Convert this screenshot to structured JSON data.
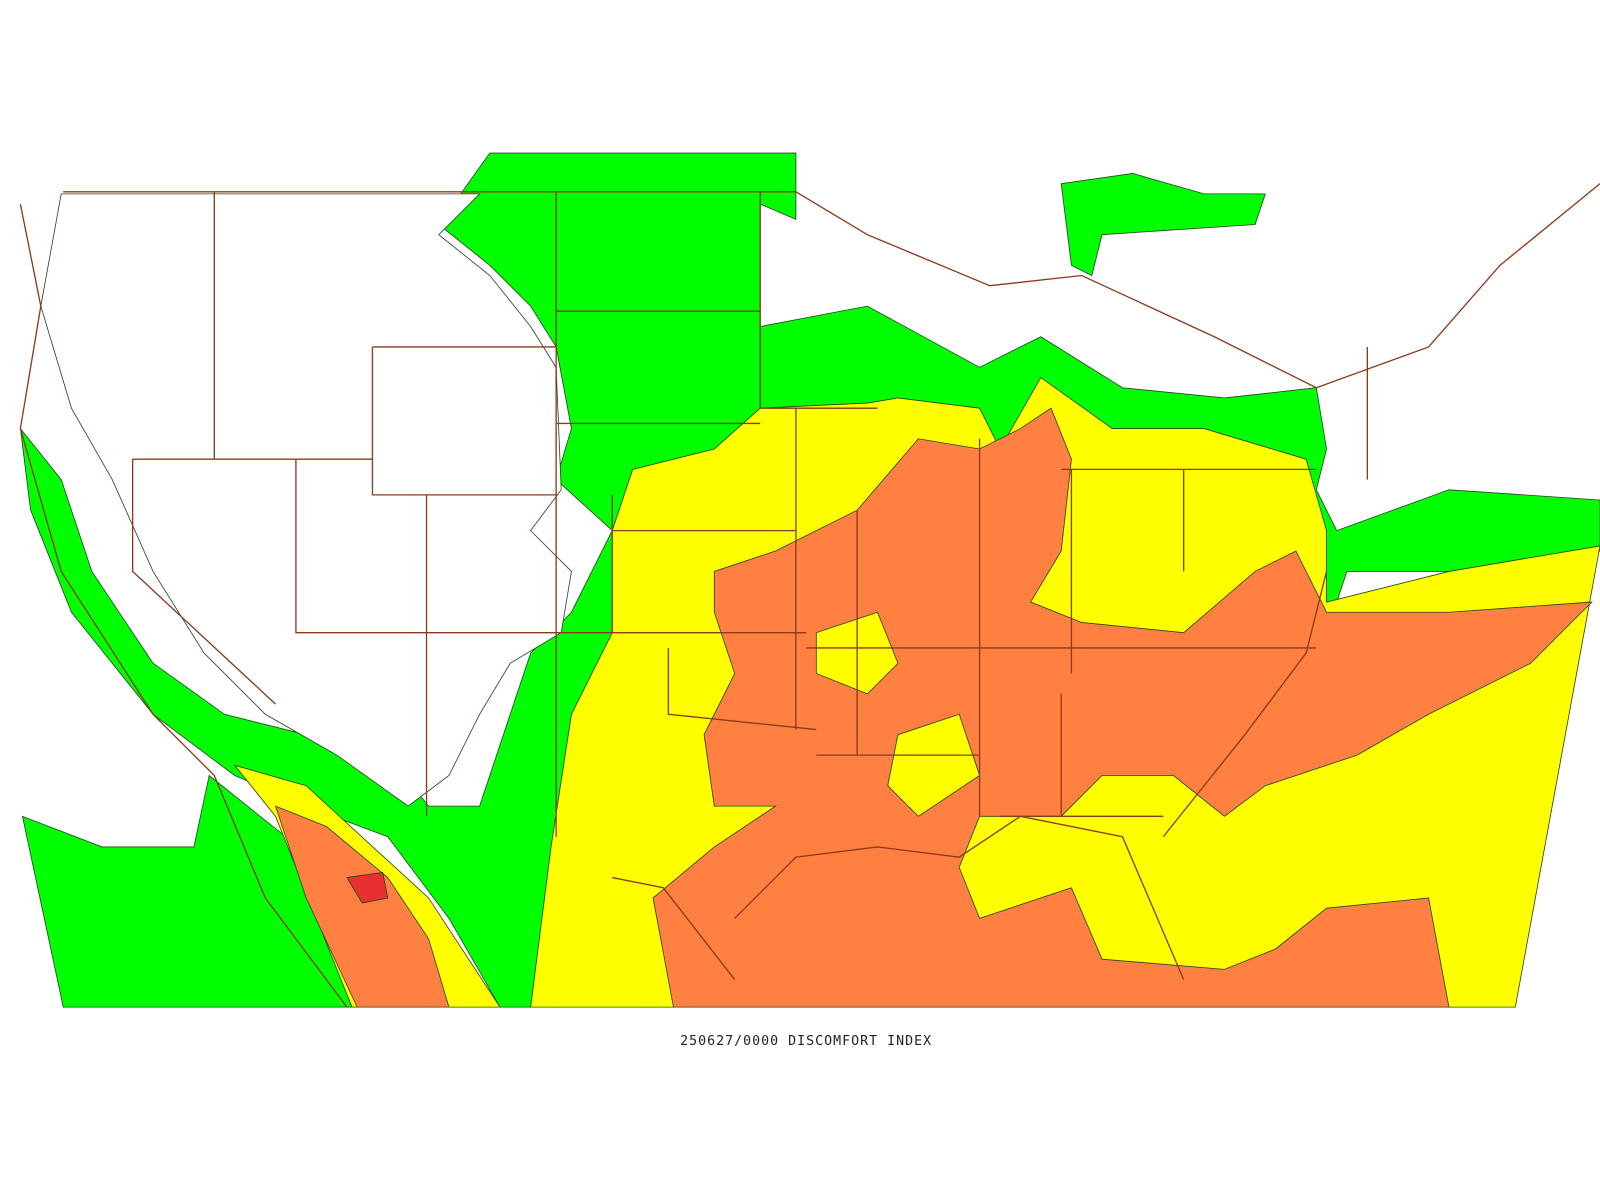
{
  "caption": "250627/0000 DISCOMFORT INDEX"
}
